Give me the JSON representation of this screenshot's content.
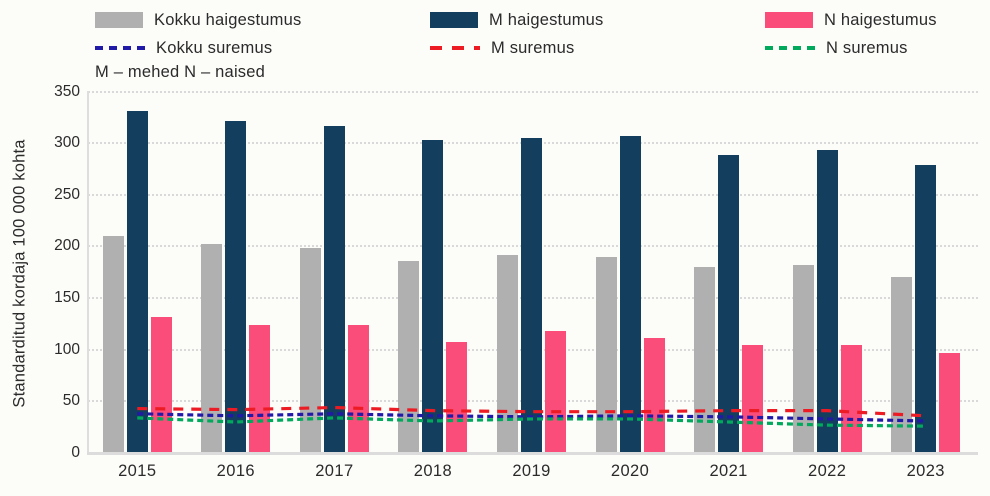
{
  "note": "M – mehed N – naised",
  "ylabel": "Standarditud kordaja 100 000 kohta",
  "colors": {
    "background": "#fcfcf9",
    "gridline": "#d9d9d9",
    "axis": "#dcdcdc",
    "text": "#2b2b2b",
    "bar_total": "#b0b0b0",
    "bar_men": "#133e5e",
    "bar_women": "#fb4d79",
    "line_total": "#2119a8",
    "line_men": "#ed1c24",
    "line_women": "#00a95c"
  },
  "chart_data": {
    "type": "bar",
    "subtype": "grouped bars with dashed overlay lines",
    "title": "",
    "xlabel": "",
    "ylabel": "Standarditud kordaja 100 000 kohta",
    "ylim": [
      0,
      350
    ],
    "ytick_step": 50,
    "grid": "horizontal dotted",
    "legend_position": "top, two rows, three columns",
    "categories": [
      "2015",
      "2016",
      "2017",
      "2018",
      "2019",
      "2020",
      "2021",
      "2022",
      "2023"
    ],
    "series": [
      {
        "name": "Kokku haigestumus",
        "kind": "bar",
        "color": "#b0b0b0",
        "values": [
          210,
          202,
          198,
          186,
          192,
          190,
          180,
          182,
          170
        ]
      },
      {
        "name": "M haigestumus",
        "kind": "bar",
        "color": "#133e5e",
        "values": [
          331,
          321,
          317,
          303,
          305,
          307,
          289,
          293,
          279
        ]
      },
      {
        "name": "N haigestumus",
        "kind": "bar",
        "color": "#fb4d79",
        "values": [
          132,
          124,
          124,
          107,
          118,
          111,
          105,
          105,
          97
        ]
      },
      {
        "name": "Kokku suremus",
        "kind": "line",
        "color": "#2119a8",
        "dash": [
          6,
          4
        ],
        "values": [
          38,
          36,
          38,
          36,
          35,
          36,
          35,
          33,
          31
        ]
      },
      {
        "name": "M suremus",
        "kind": "line",
        "color": "#ed1c24",
        "dash": [
          10,
          8
        ],
        "values": [
          43,
          42,
          44,
          41,
          40,
          40,
          41,
          41,
          36
        ]
      },
      {
        "name": "N suremus",
        "kind": "line",
        "color": "#00a95c",
        "dash": [
          6,
          4
        ],
        "values": [
          34,
          30,
          34,
          31,
          33,
          33,
          30,
          27,
          26
        ]
      }
    ]
  }
}
